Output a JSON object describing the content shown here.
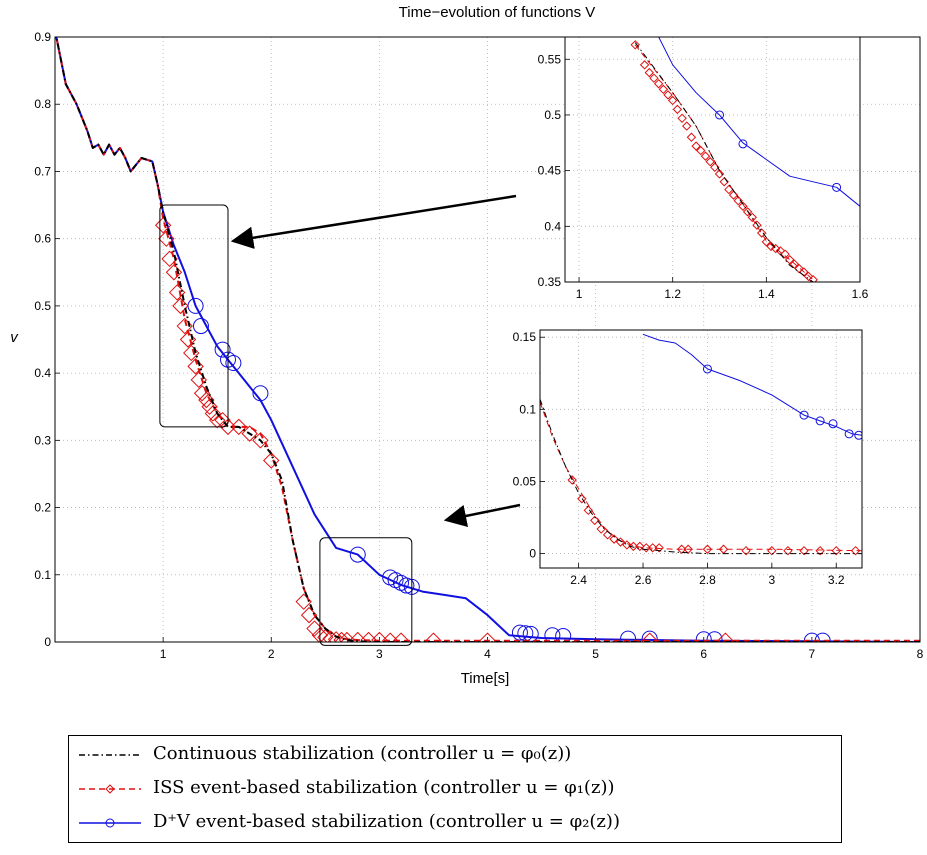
{
  "chart_data": [
    {
      "type": "line",
      "title": "Time−evolution of functions V",
      "xlabel": "Time[s]",
      "ylabel": "v",
      "xlim": [
        0,
        8
      ],
      "ylim": [
        0,
        0.9
      ],
      "grid": true,
      "xticks": [
        "1",
        "2",
        "3",
        "4",
        "5",
        "6",
        "7",
        "8"
      ],
      "yticks": [
        "0",
        "0.1",
        "0.2",
        "0.3",
        "0.4",
        "0.5",
        "0.6",
        "0.7",
        "0.8",
        "0.9"
      ],
      "series": [
        {
          "name": "Continuous stabilization (controller u = φ₀(z))",
          "color": "#000000",
          "style": "dash-dot",
          "x": [
            0,
            0.1,
            0.2,
            0.3,
            0.35,
            0.4,
            0.45,
            0.5,
            0.55,
            0.6,
            0.65,
            0.7,
            0.8,
            0.9,
            0.95,
            1.0,
            1.1,
            1.2,
            1.3,
            1.4,
            1.5,
            1.6,
            1.7,
            1.8,
            1.9,
            2.0,
            2.1,
            2.2,
            2.3,
            2.4,
            2.5,
            2.6,
            2.7,
            2.8,
            3.0,
            4.0,
            5.0,
            6.0,
            7.0,
            8.0
          ],
          "y": [
            0.91,
            0.83,
            0.8,
            0.76,
            0.735,
            0.74,
            0.725,
            0.74,
            0.725,
            0.735,
            0.72,
            0.7,
            0.72,
            0.715,
            0.68,
            0.64,
            0.58,
            0.5,
            0.43,
            0.38,
            0.34,
            0.32,
            0.32,
            0.31,
            0.3,
            0.28,
            0.24,
            0.15,
            0.08,
            0.04,
            0.02,
            0.008,
            0.003,
            0.001,
            0.0,
            0.0,
            0.0,
            0.0,
            0.0,
            0.0
          ]
        },
        {
          "name": "ISS event-based stabilization (controller u = φ₁(z))",
          "color": "#e01010",
          "style": "dashed, diamond markers",
          "x": [
            0,
            0.1,
            0.2,
            0.3,
            0.35,
            0.4,
            0.45,
            0.5,
            0.55,
            0.6,
            0.65,
            0.7,
            0.8,
            0.9,
            0.95,
            1.0,
            1.1,
            1.2,
            1.3,
            1.4,
            1.5,
            1.6,
            1.7,
            1.8,
            1.9,
            2.0,
            2.1,
            2.2,
            2.3,
            2.4,
            2.5,
            2.6,
            2.7,
            2.8,
            3.0,
            4.0,
            5.0,
            6.0,
            7.0,
            8.0
          ],
          "y": [
            0.91,
            0.83,
            0.8,
            0.76,
            0.735,
            0.74,
            0.725,
            0.74,
            0.725,
            0.735,
            0.72,
            0.7,
            0.72,
            0.715,
            0.68,
            0.63,
            0.57,
            0.48,
            0.42,
            0.37,
            0.34,
            0.32,
            0.32,
            0.32,
            0.31,
            0.28,
            0.23,
            0.15,
            0.08,
            0.04,
            0.02,
            0.008,
            0.004,
            0.003,
            0.002,
            0.002,
            0.002,
            0.002,
            0.002,
            0.002
          ],
          "marker_x": [
            1.0,
            1.03,
            1.06,
            1.1,
            1.13,
            1.16,
            1.2,
            1.23,
            1.26,
            1.3,
            1.33,
            1.36,
            1.4,
            1.43,
            1.46,
            1.5,
            1.55,
            1.6,
            1.7,
            1.8,
            1.9,
            2.0,
            2.3,
            2.35,
            2.4,
            2.45,
            2.5,
            2.55,
            2.6,
            2.65,
            2.7,
            2.8,
            2.9,
            3.0,
            3.1,
            3.2,
            3.5,
            4.0,
            5.5,
            6.2
          ],
          "marker_y": [
            0.62,
            0.6,
            0.57,
            0.55,
            0.52,
            0.5,
            0.47,
            0.45,
            0.43,
            0.41,
            0.39,
            0.37,
            0.36,
            0.35,
            0.34,
            0.33,
            0.33,
            0.32,
            0.32,
            0.31,
            0.3,
            0.27,
            0.06,
            0.04,
            0.02,
            0.01,
            0.007,
            0.005,
            0.004,
            0.003,
            0.003,
            0.003,
            0.003,
            0.003,
            0.002,
            0.002,
            0.002,
            0.002,
            0.002,
            0.002
          ]
        },
        {
          "name": "D⁺V event-based stabilization (controller u = φ₂(z))",
          "color": "#1010e0",
          "style": "solid, circle markers",
          "x": [
            0,
            0.1,
            0.2,
            0.3,
            0.35,
            0.4,
            0.45,
            0.5,
            0.55,
            0.6,
            0.65,
            0.7,
            0.8,
            0.9,
            0.95,
            1.0,
            1.1,
            1.2,
            1.3,
            1.4,
            1.5,
            1.6,
            1.7,
            1.8,
            1.9,
            2.0,
            2.2,
            2.4,
            2.6,
            2.8,
            3.0,
            3.2,
            3.4,
            3.6,
            3.8,
            4.0,
            4.2,
            4.5,
            5.0,
            6.0,
            7.0,
            8.0
          ],
          "y": [
            0.91,
            0.83,
            0.8,
            0.76,
            0.735,
            0.74,
            0.725,
            0.74,
            0.725,
            0.735,
            0.72,
            0.7,
            0.72,
            0.715,
            0.68,
            0.64,
            0.59,
            0.55,
            0.5,
            0.47,
            0.44,
            0.42,
            0.4,
            0.38,
            0.36,
            0.33,
            0.26,
            0.19,
            0.14,
            0.13,
            0.1,
            0.085,
            0.075,
            0.07,
            0.065,
            0.04,
            0.01,
            0.006,
            0.004,
            0.002,
            0.001,
            0.0
          ],
          "marker_x": [
            1.3,
            1.35,
            1.55,
            1.6,
            1.65,
            1.9,
            2.8,
            3.1,
            3.15,
            3.2,
            3.25,
            3.3,
            4.3,
            4.35,
            4.4,
            4.6,
            4.7,
            5.3,
            5.5,
            6.0,
            6.1,
            7.0,
            7.1
          ],
          "marker_y": [
            0.5,
            0.47,
            0.435,
            0.42,
            0.415,
            0.37,
            0.13,
            0.096,
            0.092,
            0.088,
            0.084,
            0.082,
            0.014,
            0.013,
            0.012,
            0.01,
            0.009,
            0.005,
            0.005,
            0.004,
            0.004,
            0.002,
            0.002
          ]
        }
      ],
      "annotations": [
        "inset box 1.0–1.6 × 0.32–0.65",
        "inset box 2.45–3.3 × 0.0–0.155"
      ]
    },
    {
      "type": "line",
      "title": "",
      "xlim": [
        0.97,
        1.6
      ],
      "ylim": [
        0.35,
        0.57
      ],
      "grid": true,
      "xticks": [
        "1",
        "1.2",
        "1.4",
        "1.6"
      ],
      "yticks": [
        "0.35",
        "0.4",
        "0.45",
        "0.5",
        "0.55"
      ],
      "series": [
        {
          "color": "#000000",
          "style": "dash-dot",
          "x": [
            1.12,
            1.2,
            1.25,
            1.3,
            1.35,
            1.4,
            1.45,
            1.5
          ],
          "y": [
            0.565,
            0.52,
            0.49,
            0.45,
            0.42,
            0.39,
            0.365,
            0.35
          ]
        },
        {
          "color": "#e01010",
          "style": "dashed, diamond markers",
          "x": [
            1.12,
            1.2,
            1.25,
            1.3,
            1.35,
            1.4,
            1.45,
            1.5
          ],
          "y": [
            0.563,
            0.52,
            0.49,
            0.45,
            0.42,
            0.387,
            0.37,
            0.352
          ],
          "marker_x": [
            1.12,
            1.14,
            1.15,
            1.16,
            1.17,
            1.18,
            1.19,
            1.2,
            1.21,
            1.22,
            1.23,
            1.24,
            1.25,
            1.26,
            1.27,
            1.28,
            1.29,
            1.3,
            1.31,
            1.32,
            1.33,
            1.34,
            1.35,
            1.36,
            1.37,
            1.38,
            1.39,
            1.4,
            1.41,
            1.42,
            1.43,
            1.44,
            1.45,
            1.46,
            1.47,
            1.48,
            1.49,
            1.5
          ],
          "marker_y": [
            0.563,
            0.545,
            0.538,
            0.533,
            0.528,
            0.523,
            0.518,
            0.513,
            0.505,
            0.497,
            0.49,
            0.48,
            0.472,
            0.468,
            0.463,
            0.458,
            0.453,
            0.447,
            0.44,
            0.433,
            0.428,
            0.423,
            0.418,
            0.413,
            0.408,
            0.401,
            0.394,
            0.386,
            0.382,
            0.38,
            0.378,
            0.375,
            0.37,
            0.366,
            0.362,
            0.359,
            0.355,
            0.352
          ]
        },
        {
          "color": "#1010e0",
          "style": "solid, circle markers",
          "x": [
            1.17,
            1.2,
            1.25,
            1.3,
            1.35,
            1.4,
            1.45,
            1.5,
            1.55,
            1.6
          ],
          "y": [
            0.57,
            0.545,
            0.52,
            0.5,
            0.475,
            0.46,
            0.445,
            0.44,
            0.435,
            0.418
          ],
          "marker_x": [
            1.3,
            1.35,
            1.55
          ],
          "marker_y": [
            0.5,
            0.474,
            0.435
          ]
        }
      ]
    },
    {
      "type": "line",
      "title": "",
      "xlim": [
        2.28,
        3.28
      ],
      "ylim": [
        -0.01,
        0.155
      ],
      "grid": true,
      "xticks": [
        "2.4",
        "2.6",
        "2.8",
        "3",
        "3.2"
      ],
      "yticks": [
        "0",
        "0.05",
        "0.1",
        "0.15"
      ],
      "series": [
        {
          "color": "#000000",
          "style": "dash-dot",
          "x": [
            2.28,
            2.32,
            2.36,
            2.4,
            2.44,
            2.48,
            2.52,
            2.56,
            2.6,
            2.7,
            2.8,
            3.0,
            3.28
          ],
          "y": [
            0.107,
            0.082,
            0.06,
            0.042,
            0.028,
            0.017,
            0.01,
            0.005,
            0.003,
            0.001,
            0.0,
            0.0,
            0.0
          ]
        },
        {
          "color": "#e01010",
          "style": "dashed, diamond markers",
          "x": [
            2.28,
            2.32,
            2.36,
            2.4,
            2.44,
            2.48,
            2.52,
            2.56,
            2.6,
            2.7,
            2.8,
            3.0,
            3.28
          ],
          "y": [
            0.105,
            0.08,
            0.06,
            0.045,
            0.03,
            0.018,
            0.01,
            0.006,
            0.004,
            0.003,
            0.003,
            0.003,
            0.002
          ],
          "marker_x": [
            2.38,
            2.41,
            2.43,
            2.45,
            2.47,
            2.49,
            2.51,
            2.53,
            2.55,
            2.57,
            2.59,
            2.61,
            2.63,
            2.65,
            2.72,
            2.74,
            2.8,
            2.85,
            2.92,
            3.0,
            3.05,
            3.1,
            3.15,
            3.2,
            3.26
          ],
          "marker_y": [
            0.051,
            0.038,
            0.03,
            0.023,
            0.017,
            0.013,
            0.01,
            0.008,
            0.006,
            0.005,
            0.005,
            0.004,
            0.004,
            0.004,
            0.003,
            0.003,
            0.003,
            0.003,
            0.002,
            0.002,
            0.002,
            0.002,
            0.002,
            0.002,
            0.002
          ]
        },
        {
          "color": "#1010e0",
          "style": "solid, circle markers",
          "x": [
            2.6,
            2.65,
            2.7,
            2.75,
            2.8,
            2.9,
            3.0,
            3.1,
            3.15,
            3.2,
            3.25,
            3.28
          ],
          "y": [
            0.152,
            0.148,
            0.146,
            0.138,
            0.128,
            0.12,
            0.11,
            0.096,
            0.092,
            0.088,
            0.083,
            0.082
          ],
          "marker_x": [
            2.8,
            3.1,
            3.15,
            3.19,
            3.24,
            3.27
          ],
          "marker_y": [
            0.128,
            0.096,
            0.092,
            0.09,
            0.083,
            0.082
          ]
        }
      ]
    }
  ],
  "legend": {
    "entries": [
      {
        "text": "Continuous stabilization (controller u = φ₀(z))",
        "color": "#000000"
      },
      {
        "text": "ISS event-based stabilization (controller u = φ₁(z))",
        "color": "#e01010"
      },
      {
        "text": "D⁺V event-based stabilization (controller u = φ₂(z))",
        "color": "#1010e0"
      }
    ]
  },
  "colors": {
    "continuous": "#000000",
    "iss": "#e01010",
    "dpv": "#1010e0",
    "grid": "#b0b0b0"
  }
}
